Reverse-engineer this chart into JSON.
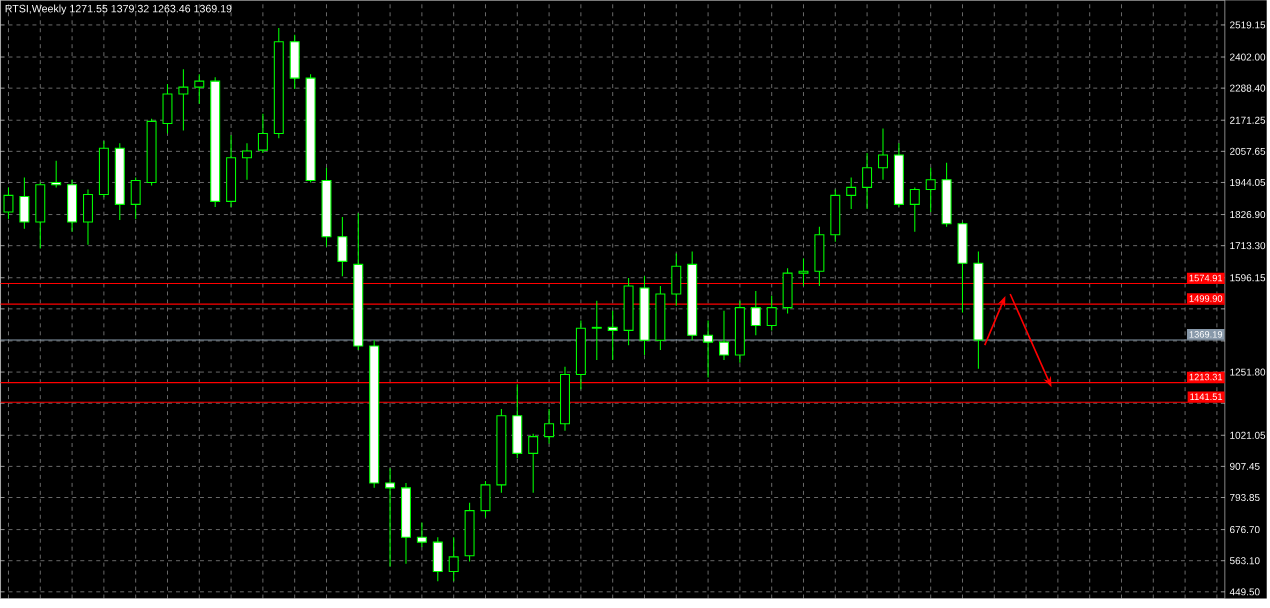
{
  "chart_data": {
    "type": "candlestick",
    "title": "RTSI,Weekly 1271.55 1379.32 1263.46 1369.19",
    "categories": [
      null,
      null,
      null,
      null,
      null,
      null,
      null,
      null,
      null,
      null,
      null,
      null,
      null,
      null,
      null,
      null,
      null,
      null,
      null,
      null,
      null,
      null,
      null,
      null,
      null,
      null,
      null,
      null,
      null,
      null,
      null,
      null,
      null,
      null,
      null,
      null,
      null,
      null,
      null,
      null,
      null,
      null,
      null,
      null,
      null,
      null,
      null,
      null,
      null,
      null,
      null,
      null,
      null,
      null,
      null,
      null,
      null,
      null,
      null,
      null,
      null,
      null,
      null,
      null,
      null,
      null,
      null,
      null,
      null,
      null,
      null,
      null,
      null,
      null,
      null,
      null,
      null
    ],
    "ohlc": [
      [
        1836,
        1926,
        1811,
        1897
      ],
      [
        1893,
        1962,
        1775,
        1800
      ],
      [
        1800,
        1944,
        1703,
        1936
      ],
      [
        1944,
        2023,
        1926,
        1936
      ],
      [
        1936,
        1954,
        1764,
        1800
      ],
      [
        1800,
        1918,
        1717,
        1900
      ],
      [
        1900,
        2095,
        1890,
        2069
      ],
      [
        2069,
        2087,
        1807,
        1864
      ],
      [
        1864,
        1962,
        1811,
        1951
      ],
      [
        1944,
        2177,
        1933,
        2167
      ],
      [
        2159,
        2303,
        2123,
        2267
      ],
      [
        2267,
        2357,
        2134,
        2292
      ],
      [
        2292,
        2339,
        2231,
        2314
      ],
      [
        2314,
        2328,
        1854,
        1875
      ],
      [
        1875,
        2116,
        1854,
        2034
      ],
      [
        2034,
        2087,
        1954,
        2059
      ],
      [
        2062,
        2195,
        2052,
        2123
      ],
      [
        2123,
        2508,
        2105,
        2458
      ],
      [
        2458,
        2483,
        2285,
        2325
      ],
      [
        2325,
        2339,
        1944,
        1951
      ],
      [
        1951,
        1998,
        1710,
        1746
      ],
      [
        1746,
        1818,
        1602,
        1656
      ],
      [
        1645,
        1832,
        1332,
        1347
      ],
      [
        1347,
        1368,
        829,
        847
      ],
      [
        847,
        901,
        542,
        829
      ],
      [
        829,
        847,
        552,
        649
      ],
      [
        649,
        703,
        613,
        631
      ],
      [
        631,
        649,
        488,
        524
      ],
      [
        524,
        649,
        488,
        577
      ],
      [
        581,
        775,
        560,
        746
      ],
      [
        746,
        854,
        721,
        840
      ],
      [
        840,
        1117,
        811,
        1092
      ],
      [
        1092,
        1207,
        937,
        955
      ],
      [
        955,
        1027,
        811,
        1016
      ],
      [
        1016,
        1117,
        991,
        1063
      ],
      [
        1063,
        1271,
        1038,
        1243
      ],
      [
        1243,
        1440,
        1189,
        1412
      ],
      [
        1412,
        1512,
        1296,
        1415
      ],
      [
        1415,
        1476,
        1296,
        1404
      ],
      [
        1404,
        1595,
        1350,
        1566
      ],
      [
        1559,
        1602,
        1314,
        1368
      ],
      [
        1368,
        1566,
        1332,
        1537
      ],
      [
        1537,
        1685,
        1494,
        1638
      ],
      [
        1645,
        1692,
        1368,
        1386
      ],
      [
        1386,
        1440,
        1232,
        1361
      ],
      [
        1361,
        1476,
        1296,
        1314
      ],
      [
        1314,
        1512,
        1286,
        1487
      ],
      [
        1487,
        1548,
        1386,
        1422
      ],
      [
        1422,
        1530,
        1404,
        1487
      ],
      [
        1487,
        1631,
        1466,
        1613
      ],
      [
        1613,
        1667,
        1566,
        1620
      ],
      [
        1620,
        1782,
        1566,
        1753
      ],
      [
        1753,
        1918,
        1728,
        1897
      ],
      [
        1897,
        1962,
        1847,
        1926
      ],
      [
        1926,
        2052,
        1847,
        1998
      ],
      [
        1998,
        2141,
        1954,
        2044
      ],
      [
        2044,
        2087,
        1854,
        1864
      ],
      [
        1864,
        1926,
        1764,
        1918
      ],
      [
        1918,
        1998,
        1836,
        1954
      ],
      [
        1954,
        2016,
        1782,
        1793
      ],
      [
        1793,
        1800,
        1469,
        1649
      ],
      [
        1649,
        1692,
        1263.46,
        1369.19
      ],
      null,
      null,
      null,
      null,
      null,
      null,
      null,
      null,
      null,
      null,
      null,
      null,
      null,
      null,
      null
    ],
    "color": "#00ff00",
    "ylim": [
      425,
      2609
    ],
    "yticks": [
      {
        "value": 2519.15,
        "label": "2519.15"
      },
      {
        "value": 2402,
        "label": "2402.00"
      },
      {
        "value": 2288.4,
        "label": "2288.40"
      },
      {
        "value": 2171.25,
        "label": "2171.25"
      },
      {
        "value": 2057.65,
        "label": "2057.65"
      },
      {
        "value": 1944.05,
        "label": "1944.05"
      },
      {
        "value": 1826.9,
        "label": "1826.90"
      },
      {
        "value": 1713.3,
        "label": "1713.30"
      },
      {
        "value": 1596.15,
        "label": "1596.15"
      },
      {
        "value": 1482.55,
        "label": null
      },
      {
        "value": 1365.4,
        "label": null
      },
      {
        "value": 1251.8,
        "label": "1251.80"
      },
      {
        "value": 1138.2,
        "label": null
      },
      {
        "value": 1021.05,
        "label": "1021.05"
      },
      {
        "value": 907.45,
        "label": "907.45"
      },
      {
        "value": 793.85,
        "label": "793.85"
      },
      {
        "value": 676.7,
        "label": "676.70"
      },
      {
        "value": 563.1,
        "label": "563.10"
      },
      {
        "value": 449.5,
        "label": "449.50"
      }
    ],
    "grid": true,
    "ref_lines": [
      {
        "axis": "y",
        "value": 1574.91,
        "label": "1574.91",
        "color": "#ff0000"
      },
      {
        "axis": "y",
        "value": 1499.9,
        "label": "1499.90",
        "color": "#ff0000"
      },
      {
        "axis": "y",
        "value": 1369.19,
        "label": "1369.19",
        "color": "#8899aa"
      },
      {
        "axis": "y",
        "value": 1213.31,
        "label": "1213.31",
        "color": "#ff0000"
      },
      {
        "axis": "y",
        "value": 1141.51,
        "label": "1141.51",
        "color": "#ff0000"
      }
    ]
  }
}
